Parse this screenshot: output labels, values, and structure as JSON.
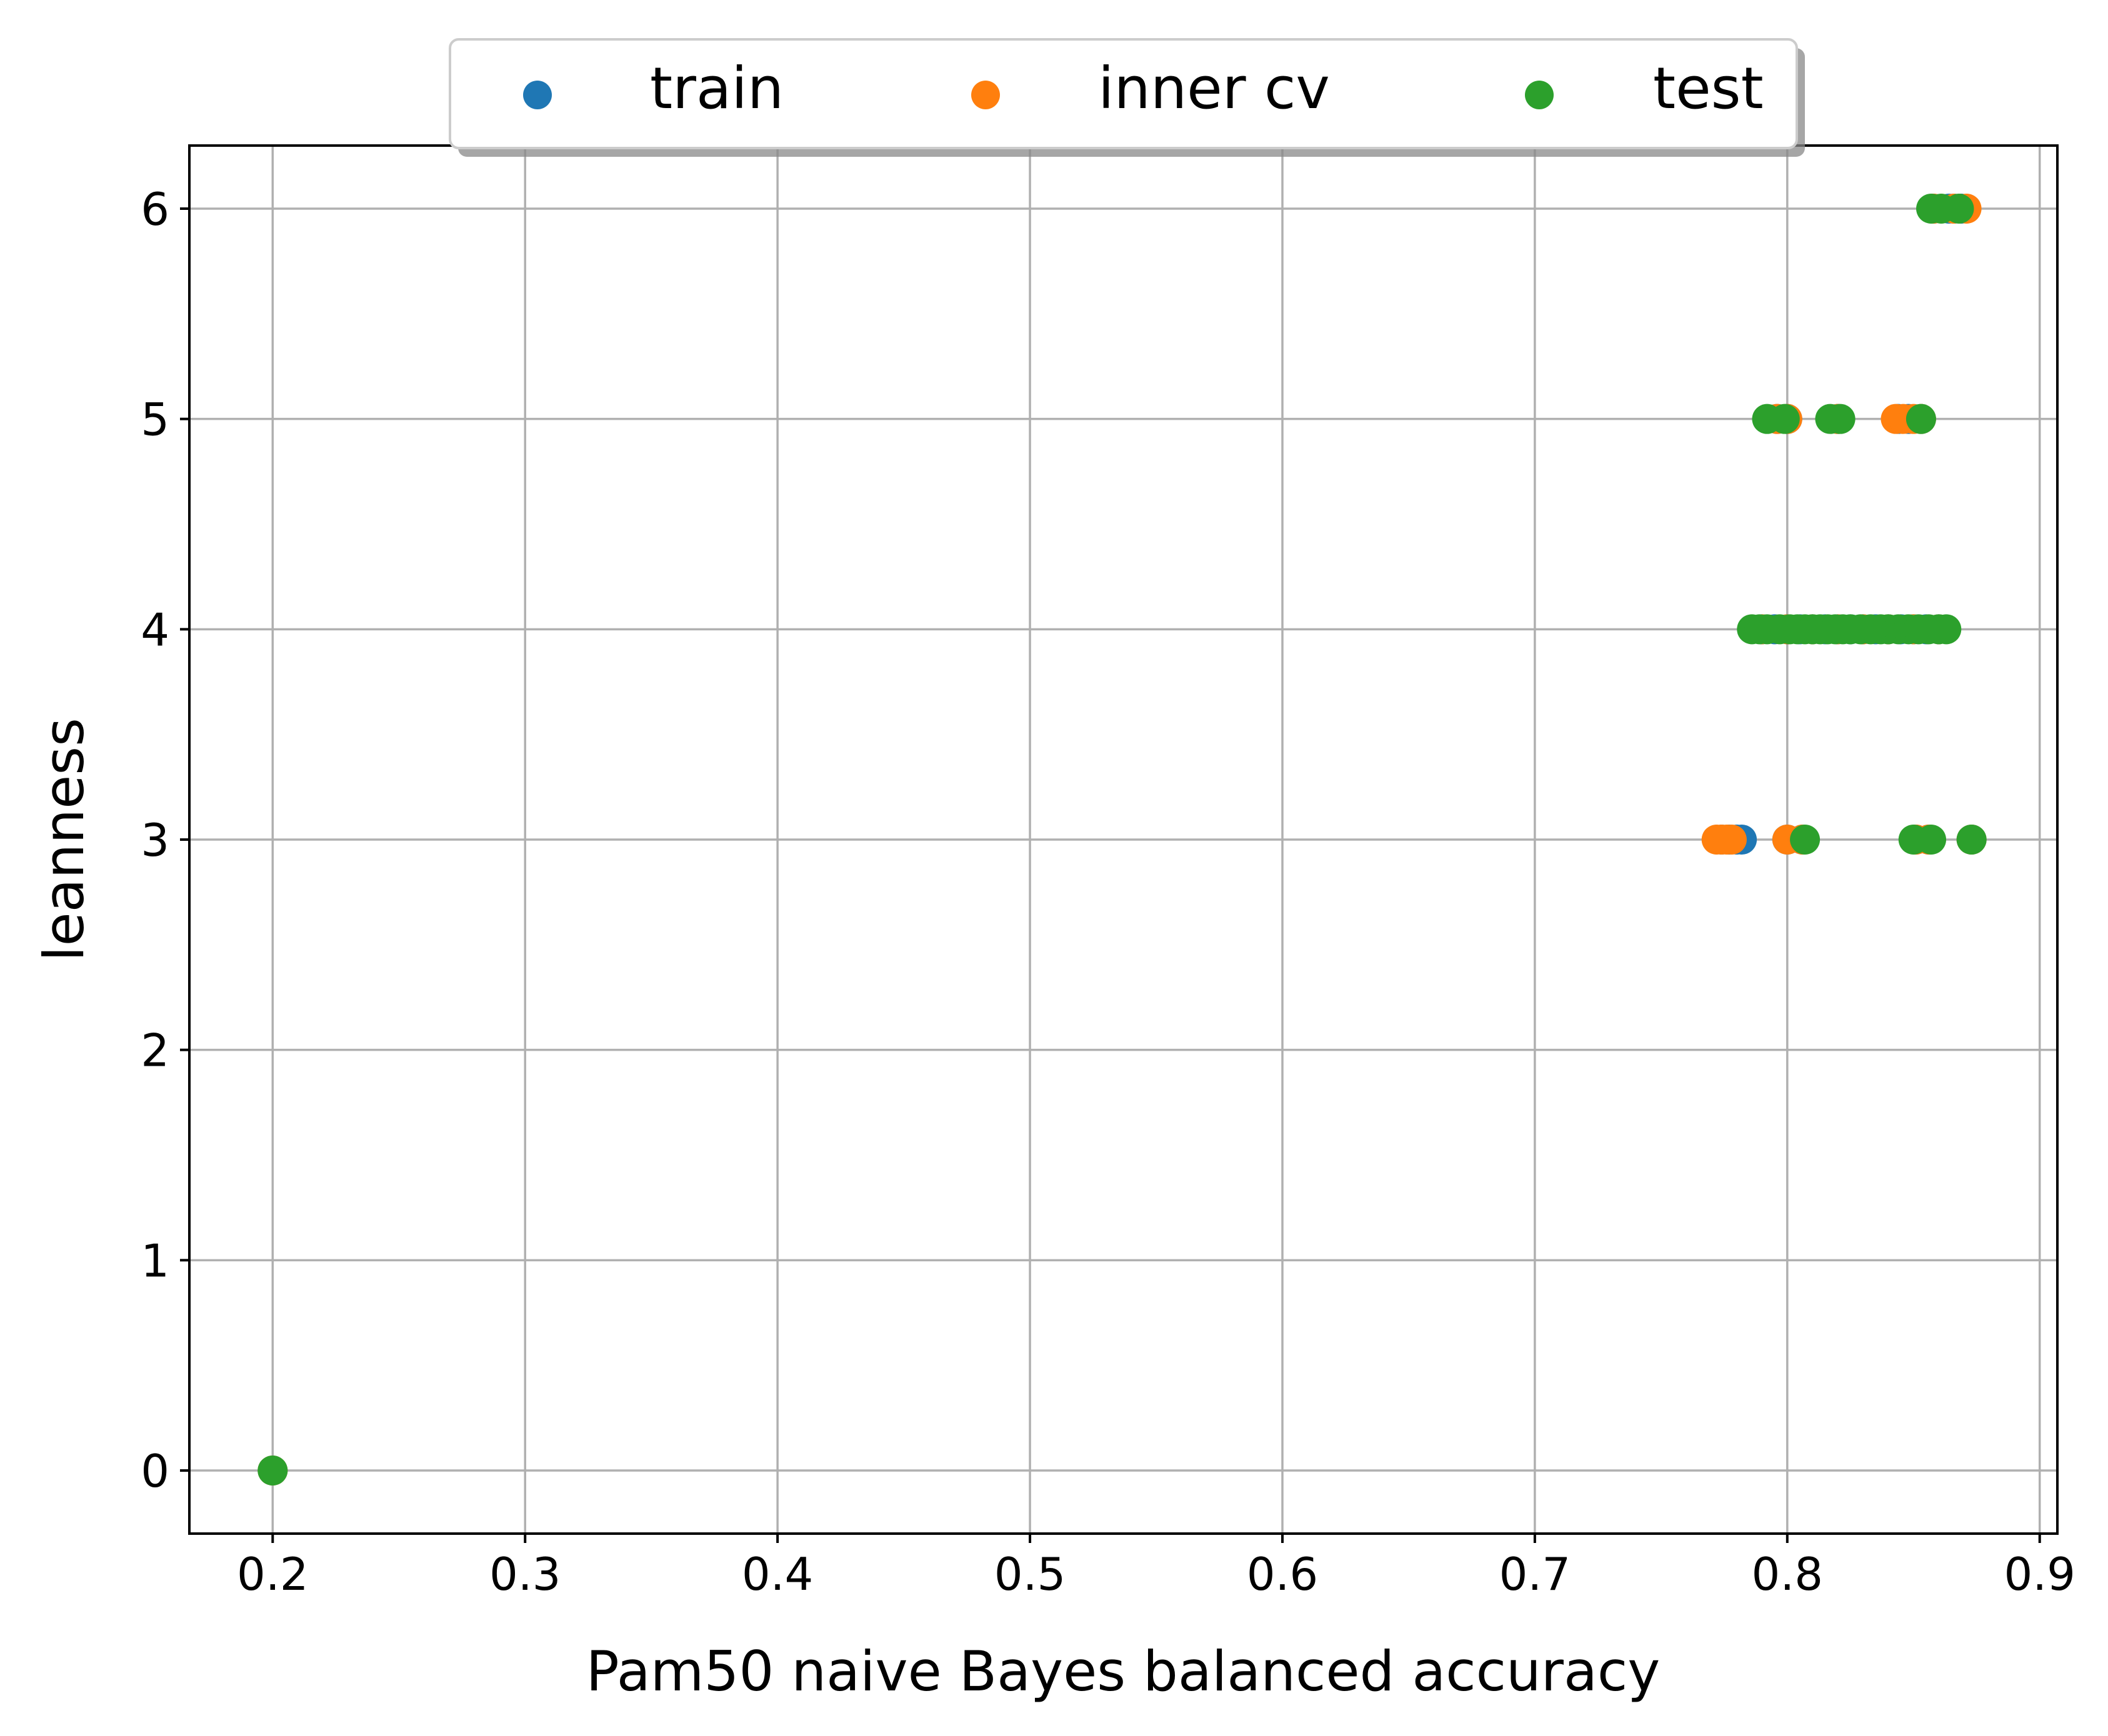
{
  "chart_data": {
    "type": "scatter",
    "xlabel": "Pam50 naive Bayes balanced accuracy",
    "ylabel": "leanness",
    "xlim": [
      0.167,
      0.907
    ],
    "ylim": [
      -0.3,
      6.3
    ],
    "xticks": [
      0.2,
      0.3,
      0.4,
      0.5,
      0.6,
      0.7,
      0.8,
      0.9
    ],
    "xtick_labels": [
      "0.2",
      "0.3",
      "0.4",
      "0.5",
      "0.6",
      "0.7",
      "0.8",
      "0.9"
    ],
    "yticks": [
      0,
      1,
      2,
      3,
      4,
      5,
      6
    ],
    "ytick_labels": [
      "0",
      "1",
      "2",
      "3",
      "4",
      "5",
      "6"
    ],
    "grid": true,
    "legend_position": "top-center, outside",
    "series": [
      {
        "name": "train",
        "color": "#1f77b4",
        "points": [
          [
            0.2,
            0
          ],
          [
            0.774,
            3
          ],
          [
            0.777,
            3
          ],
          [
            0.78,
            3
          ],
          [
            0.782,
            3
          ],
          [
            0.8,
            3
          ],
          [
            0.806,
            3
          ],
          [
            0.851,
            3
          ],
          [
            0.856,
            3
          ],
          [
            0.873,
            3
          ],
          [
            0.79,
            4
          ],
          [
            0.795,
            4
          ],
          [
            0.8,
            4
          ],
          [
            0.805,
            4
          ],
          [
            0.81,
            4
          ],
          [
            0.815,
            4
          ],
          [
            0.82,
            4
          ],
          [
            0.825,
            4
          ],
          [
            0.83,
            4
          ],
          [
            0.835,
            4
          ],
          [
            0.84,
            4
          ],
          [
            0.845,
            4
          ],
          [
            0.85,
            4
          ],
          [
            0.855,
            4
          ],
          [
            0.86,
            4
          ],
          [
            0.796,
            5
          ],
          [
            0.8,
            5
          ],
          [
            0.82,
            5
          ],
          [
            0.844,
            5
          ],
          [
            0.848,
            5
          ],
          [
            0.853,
            5
          ],
          [
            0.858,
            6
          ],
          [
            0.864,
            6
          ],
          [
            0.866,
            6
          ],
          [
            0.869,
            6
          ]
        ]
      },
      {
        "name": "inner cv",
        "color": "#ff7f0e",
        "points": [
          [
            0.2,
            0
          ],
          [
            0.772,
            3
          ],
          [
            0.774,
            3
          ],
          [
            0.776,
            3
          ],
          [
            0.778,
            3
          ],
          [
            0.8,
            3
          ],
          [
            0.806,
            3
          ],
          [
            0.851,
            3
          ],
          [
            0.856,
            3
          ],
          [
            0.873,
            3
          ],
          [
            0.79,
            4
          ],
          [
            0.8,
            4
          ],
          [
            0.81,
            4
          ],
          [
            0.82,
            4
          ],
          [
            0.83,
            4
          ],
          [
            0.84,
            4
          ],
          [
            0.85,
            4
          ],
          [
            0.86,
            4
          ],
          [
            0.796,
            5
          ],
          [
            0.8,
            5
          ],
          [
            0.82,
            5
          ],
          [
            0.843,
            5
          ],
          [
            0.846,
            5
          ],
          [
            0.85,
            5
          ],
          [
            0.853,
            5
          ],
          [
            0.858,
            6
          ],
          [
            0.866,
            6
          ],
          [
            0.871,
            6
          ]
        ]
      },
      {
        "name": "test",
        "color": "#2ca02c",
        "points": [
          [
            0.2,
            0
          ],
          [
            0.807,
            3
          ],
          [
            0.85,
            3
          ],
          [
            0.857,
            3
          ],
          [
            0.873,
            3
          ],
          [
            0.786,
            4
          ],
          [
            0.789,
            4
          ],
          [
            0.792,
            4
          ],
          [
            0.797,
            4
          ],
          [
            0.801,
            4
          ],
          [
            0.804,
            4
          ],
          [
            0.807,
            4
          ],
          [
            0.81,
            4
          ],
          [
            0.813,
            4
          ],
          [
            0.816,
            4
          ],
          [
            0.819,
            4
          ],
          [
            0.822,
            4
          ],
          [
            0.825,
            4
          ],
          [
            0.829,
            4
          ],
          [
            0.833,
            4
          ],
          [
            0.837,
            4
          ],
          [
            0.84,
            4
          ],
          [
            0.844,
            4
          ],
          [
            0.848,
            4
          ],
          [
            0.852,
            4
          ],
          [
            0.856,
            4
          ],
          [
            0.86,
            4
          ],
          [
            0.863,
            4
          ],
          [
            0.792,
            5
          ],
          [
            0.799,
            5
          ],
          [
            0.817,
            5
          ],
          [
            0.821,
            5
          ],
          [
            0.853,
            5
          ],
          [
            0.857,
            6
          ],
          [
            0.861,
            6
          ],
          [
            0.868,
            6
          ]
        ]
      }
    ]
  }
}
